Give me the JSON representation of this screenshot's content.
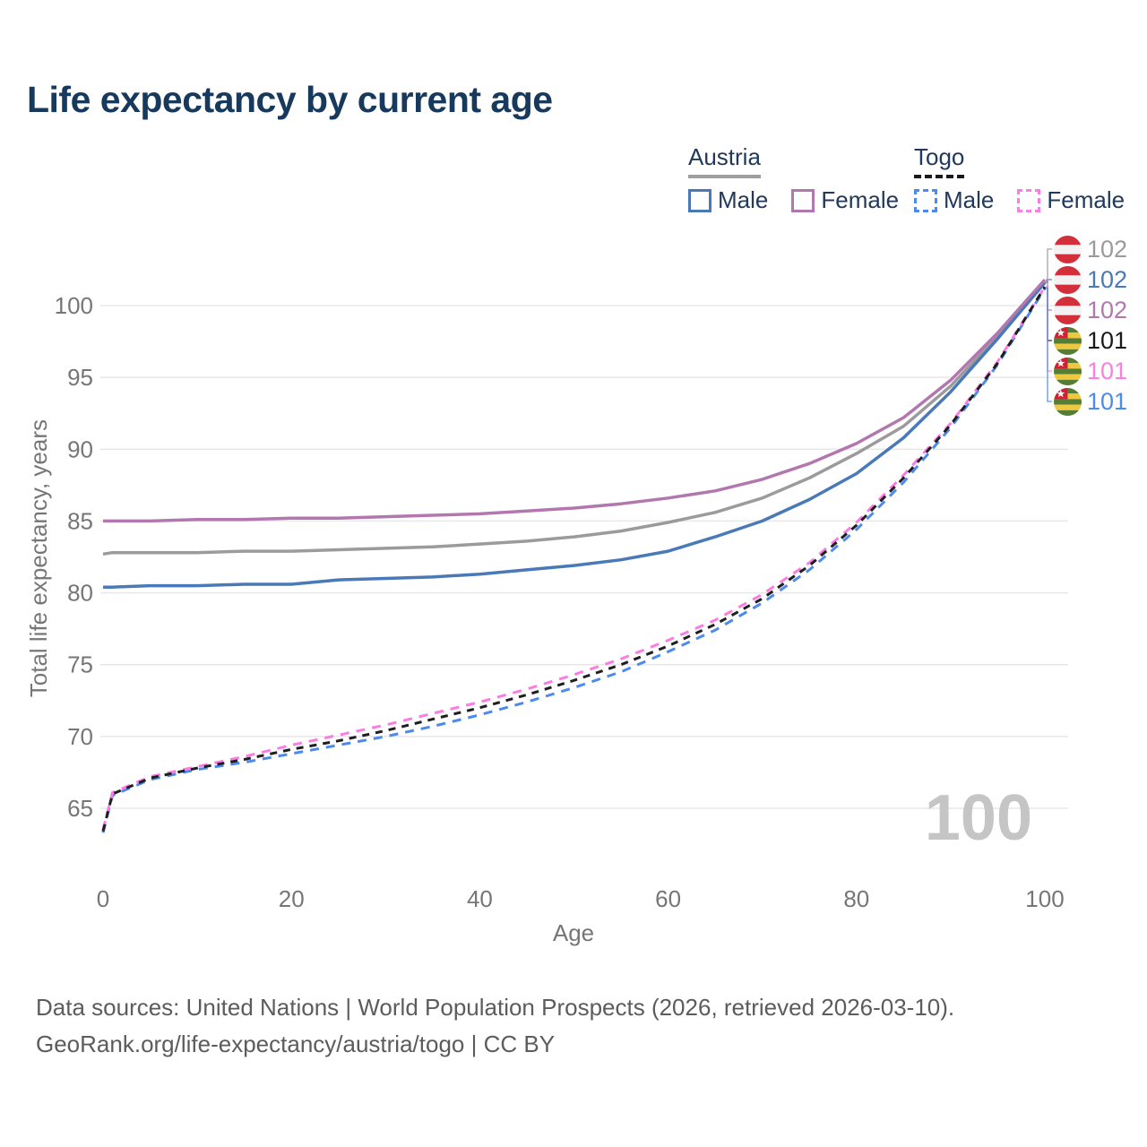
{
  "title": "Life expectancy by current age",
  "legend": {
    "groups": [
      {
        "name": "Austria",
        "line_style": "solid",
        "underline_color": "#9e9e9e",
        "items": [
          {
            "label": "Male",
            "color": "#4a79b8"
          },
          {
            "label": "Female",
            "color": "#b377af"
          }
        ]
      },
      {
        "name": "Togo",
        "line_style": "dashed",
        "underline_color": "#1a1a1a",
        "items": [
          {
            "label": "Male",
            "color": "#4d8af0"
          },
          {
            "label": "Female",
            "color": "#fb7de2"
          }
        ]
      }
    ]
  },
  "chart_data": {
    "type": "line",
    "title": "Life expectancy by current age",
    "xlabel": "Age",
    "ylabel": "Total life expectancy, years",
    "xlim": [
      0,
      100
    ],
    "ylim": [
      62,
      103.5
    ],
    "x_ticks": [
      0,
      20,
      40,
      60,
      80,
      100
    ],
    "y_ticks": [
      65,
      70,
      75,
      80,
      85,
      90,
      95,
      100
    ],
    "grid": "horizontal",
    "legend_position": "top-right",
    "x": [
      0,
      1,
      5,
      10,
      15,
      20,
      25,
      30,
      35,
      40,
      45,
      50,
      55,
      60,
      65,
      70,
      75,
      80,
      85,
      90,
      95,
      100
    ],
    "series": [
      {
        "name": "Austria both sexes",
        "country": "Austria",
        "sex": "both",
        "color": "#9b9b9b",
        "style": "solid",
        "values": [
          82.7,
          82.8,
          82.8,
          82.8,
          82.9,
          82.9,
          83.0,
          83.1,
          83.2,
          83.4,
          83.6,
          83.9,
          84.3,
          84.9,
          85.6,
          86.6,
          88.0,
          89.7,
          91.6,
          94.4,
          97.9,
          101.7
        ]
      },
      {
        "name": "Austria Male",
        "country": "Austria",
        "sex": "male",
        "color": "#4a79b8",
        "style": "solid",
        "values": [
          80.4,
          80.4,
          80.5,
          80.5,
          80.6,
          80.6,
          80.9,
          81.0,
          81.1,
          81.3,
          81.6,
          81.9,
          82.3,
          82.9,
          83.9,
          85.0,
          86.5,
          88.3,
          90.8,
          94.0,
          97.7,
          101.6
        ]
      },
      {
        "name": "Austria Female",
        "country": "Austria",
        "sex": "female",
        "color": "#b377af",
        "style": "solid",
        "values": [
          85.0,
          85.0,
          85.0,
          85.1,
          85.1,
          85.2,
          85.2,
          85.3,
          85.4,
          85.5,
          85.7,
          85.9,
          86.2,
          86.6,
          87.1,
          87.9,
          89.0,
          90.4,
          92.2,
          94.8,
          98.1,
          101.8
        ]
      },
      {
        "name": "Togo Male",
        "country": "Togo",
        "sex": "male",
        "color": "#4d8af0",
        "style": "dashed",
        "values": [
          63.3,
          65.9,
          67.0,
          67.7,
          68.2,
          68.8,
          69.4,
          70.0,
          70.7,
          71.5,
          72.4,
          73.4,
          74.5,
          75.9,
          77.4,
          79.3,
          81.6,
          84.4,
          87.7,
          91.5,
          95.9,
          101.2
        ]
      },
      {
        "name": "Togo Female",
        "country": "Togo",
        "sex": "female",
        "color": "#fb7de2",
        "style": "dashed",
        "values": [
          63.5,
          66.1,
          67.2,
          67.9,
          68.6,
          69.4,
          70.1,
          70.8,
          71.6,
          72.4,
          73.3,
          74.3,
          75.4,
          76.7,
          78.1,
          79.9,
          82.1,
          84.9,
          88.2,
          91.8,
          96.1,
          101.3
        ]
      },
      {
        "name": "Togo both sexes",
        "country": "Togo",
        "sex": "both",
        "color": "#1f1f1f",
        "style": "dashed",
        "values": [
          63.4,
          66.0,
          67.1,
          67.8,
          68.4,
          69.1,
          69.7,
          70.4,
          71.2,
          72.0,
          72.9,
          73.9,
          75.0,
          76.3,
          77.8,
          79.6,
          81.9,
          84.7,
          88.0,
          91.7,
          96.0,
          101.3
        ]
      }
    ]
  },
  "end_labels": [
    {
      "series": "Austria both sexes",
      "value": "102",
      "color": "#9a9a9a",
      "flag": "austria"
    },
    {
      "series": "Austria Male",
      "value": "102",
      "color": "#4a79b8",
      "flag": "austria"
    },
    {
      "series": "Austria Female",
      "value": "102",
      "color": "#b377af",
      "flag": "austria"
    },
    {
      "series": "Togo both sexes",
      "value": "101",
      "color": "#1a1a1a",
      "flag": "togo"
    },
    {
      "series": "Togo Female",
      "value": "101",
      "color": "#ff7ce0",
      "flag": "togo"
    },
    {
      "series": "Togo Male",
      "value": "101",
      "color": "#4d8af0",
      "flag": "togo"
    }
  ],
  "flags": {
    "austria": {
      "red": "#d32f3b",
      "white": "#f2f2f2"
    },
    "togo": {
      "green": "#567d35",
      "yellow": "#edc843",
      "red": "#cf2335",
      "star": "#ffffff"
    }
  },
  "watermark": "100",
  "footer": {
    "line1": "Data sources: United Nations | World Population Prospects (2026, retrieved 2026-03-10).",
    "line2": "GeoRank.org/life-expectancy/austria/togo | CC BY"
  },
  "colors": {
    "title": "#17395c",
    "axis_text": "#767676",
    "gridline": "#e8e8e8",
    "watermark": "#c5c5c5"
  }
}
